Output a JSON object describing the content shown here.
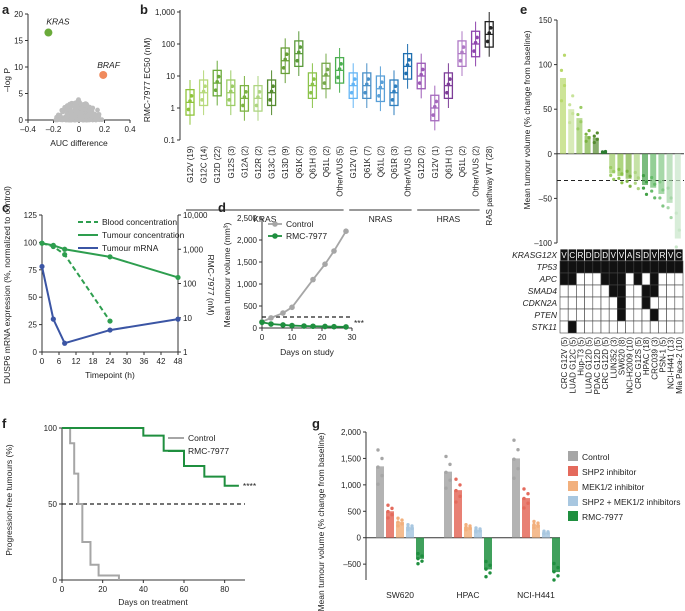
{
  "panels": {
    "a": {
      "letter": "a",
      "ylabel": "–log P",
      "xlabel": "AUC difference",
      "xticks": [
        "–0.4",
        "–0.2",
        "0",
        "0.2",
        "0.4"
      ],
      "yticks": [
        "0",
        "5",
        "10",
        "15",
        "20"
      ],
      "labels": [
        "KRAS",
        "BRAF"
      ],
      "colors": {
        "kras": "#6aaa3a",
        "braf": "#f08a5d",
        "bg": "#bdbdbd"
      },
      "chart_data": {
        "type": "scatter",
        "xlim": [
          -0.4,
          0.4
        ],
        "ylim": [
          0,
          20
        ],
        "points": [
          {
            "label": "KRAS",
            "x": -0.24,
            "y": 16.5
          },
          {
            "label": "BRAF",
            "x": 0.19,
            "y": 8.5
          }
        ]
      }
    },
    "b": {
      "letter": "b",
      "ylabel": "RMC-7977 EC50 (nM)",
      "yticks": [
        "0.1",
        "1",
        "10",
        "100",
        "1,000"
      ],
      "categories": [
        "G12V (19)",
        "G12C (14)",
        "G12D (22)",
        "G12S (3)",
        "G12A (2)",
        "G12R (2)",
        "G13C (1)",
        "G13D (9)",
        "Q61K (2)",
        "Q61H (3)",
        "Q61L (2)",
        "Other/VUS (5)",
        "G12V (1)",
        "Q61K (7)",
        "Q61L (2)",
        "Q61R (3)",
        "Other/VUS (1)",
        "G12D (2)",
        "G12V (1)",
        "Q61H (1)",
        "Q61L (2)",
        "Other/VUS (2)",
        "RAS pathway WT (28)"
      ],
      "groups": [
        {
          "name": "KRAS"
        },
        {
          "name": "NRAS"
        },
        {
          "name": "HRAS"
        }
      ],
      "chart_data": {
        "type": "box",
        "yscale": "log",
        "ylim": [
          0.1,
          1000
        ],
        "medians": [
          1.5,
          3,
          6,
          3,
          2,
          2,
          3,
          30,
          50,
          5,
          10,
          15,
          5,
          5,
          4,
          3,
          20,
          10,
          1,
          5,
          50,
          100,
          200
        ]
      }
    },
    "c": {
      "letter": "c",
      "ylabel": "DUSP6 mRNA expression (%, normalized to control)",
      "y2label": "RMC-7977 (nM)",
      "xlabel": "Timepoint (h)",
      "xticks": [
        "0",
        "6",
        "12",
        "18",
        "24",
        "30",
        "36",
        "42",
        "48"
      ],
      "yticks": [
        "0",
        "25",
        "50",
        "75",
        "100",
        "125"
      ],
      "y2ticks": [
        "1",
        "10",
        "100",
        "1,000",
        "10,000"
      ],
      "legend": [
        "Blood concentration",
        "Tumour concentration",
        "Tumour mRNA"
      ],
      "colors": {
        "blood": "#2e9e4f",
        "tumour": "#2e9e4f",
        "mrna": "#3b55a4"
      },
      "chart_data": {
        "type": "line",
        "series": [
          {
            "name": "Blood concentration",
            "x": [
              0,
              4,
              8,
              24
            ],
            "y": [
              1500,
              1200,
              700,
              8
            ]
          },
          {
            "name": "Tumour concentration",
            "x": [
              0,
              4,
              8,
              24,
              48
            ],
            "y": [
              1500,
              1300,
              1000,
              600,
              150
            ]
          },
          {
            "name": "Tumour mRNA",
            "x": [
              0,
              4,
              8,
              24,
              48
            ],
            "y": [
              78,
              30,
              8,
              20,
              30
            ]
          }
        ]
      }
    },
    "d": {
      "letter": "d",
      "ylabel": "Mean tumour volume (mm³)",
      "xlabel": "Days on study",
      "xticks": [
        "0",
        "10",
        "20",
        "30"
      ],
      "yticks": [
        "0",
        "500",
        "1,000",
        "1,500",
        "2,000",
        "2,500"
      ],
      "legend": [
        "Control",
        "RMC-7977"
      ],
      "sig": "***",
      "chart_data": {
        "type": "line",
        "series": [
          {
            "name": "Control",
            "x": [
              0,
              3,
              7,
              10,
              17,
              21,
              24,
              28
            ],
            "y": [
              140,
              230,
              340,
              470,
              1100,
              1450,
              1750,
              2200
            ]
          },
          {
            "name": "RMC-7977",
            "x": [
              0,
              3,
              7,
              10,
              14,
              17,
              21,
              24,
              28
            ],
            "y": [
              130,
              90,
              70,
              55,
              45,
              40,
              35,
              30,
              25
            ]
          }
        ]
      }
    },
    "e": {
      "letter": "e",
      "ylabel": "Mean tumour volume (% change from baseline)",
      "yticks": [
        "150",
        "100",
        "50",
        "0",
        "–50",
        "–100"
      ],
      "gene_header": "KRASG12X",
      "kras_letters": [
        "V",
        "C",
        "R",
        "D",
        "D",
        "D",
        "V",
        "V",
        "A",
        "S",
        "D",
        "V",
        "R",
        "V",
        "C"
      ],
      "genes": [
        "TP53",
        "APC",
        "SMAD4",
        "CDKN2A",
        "PTEN",
        "STK11"
      ],
      "models": [
        "CRC G12V (5)",
        "LUAD G12C (5)",
        "Hup-T3 (5)",
        "LUAD G12D (5)",
        "PDAC G12D (5)",
        "CRC G12D (5)",
        "LUN352 (3)",
        "SW620 (8)",
        "NCI-H2009 (10)",
        "CRC G12S (5)",
        "HPAC (18)",
        "CRC039 (3)",
        "PSN-1 (5)",
        "NCI-H441 (13)",
        "Mia Paca-2 (10)"
      ],
      "chart_data": {
        "type": "bar",
        "categories": [
          "CRC G12V",
          "LUAD G12C",
          "Hup-T3",
          "LUAD G12D",
          "PDAC G12D",
          "CRC G12D",
          "LUN352",
          "SW620",
          "NCI-H2009",
          "CRC G12S",
          "HPAC",
          "CRC039",
          "PSN-1",
          "NCI-H441",
          "Mia Paca-2"
        ],
        "values": [
          85,
          50,
          40,
          20,
          18,
          2,
          -22,
          -25,
          -28,
          -30,
          -35,
          -38,
          -45,
          -55,
          -95
        ],
        "ylim": [
          -100,
          150
        ]
      }
    },
    "f": {
      "letter": "f",
      "ylabel": "Progression-free tumours (%)",
      "xlabel": "Days on treatment",
      "xticks": [
        "0",
        "20",
        "40",
        "60",
        "80"
      ],
      "yticks": [
        "0",
        "50",
        "100"
      ],
      "legend": [
        "Control",
        "RMC-7977"
      ],
      "sig": "****",
      "chart_data": {
        "type": "line",
        "xlim": [
          0,
          90
        ],
        "ylim": [
          0,
          100
        ],
        "series": [
          {
            "name": "Control",
            "x": [
              0,
              4,
              6,
              8,
              10,
              14,
              18,
              28
            ],
            "y": [
              100,
              90,
              70,
              50,
              25,
              10,
              3,
              0
            ]
          },
          {
            "name": "RMC-7977",
            "x": [
              0,
              10,
              20,
              30,
              40,
              50,
              60,
              70,
              80,
              87
            ],
            "y": [
              100,
              100,
              100,
              100,
              95,
              85,
              75,
              68,
              62,
              62
            ]
          }
        ]
      }
    },
    "g": {
      "letter": "g",
      "ylabel": "Mean tumour volume (% change from baseline)",
      "yticks": [
        "2,000",
        "1,500",
        "1,000",
        "500",
        "0",
        "–500"
      ],
      "groups": [
        "SW620",
        "HPAC",
        "NCI-H441"
      ],
      "legend": [
        "Control",
        "SHP2 inhibitor",
        "MEK1/2 inhibitor",
        "SHP2 + MEK1/2 inhibitors",
        "RMC-7977"
      ],
      "colors": [
        "#a6a6a6",
        "#e46a5c",
        "#f2b07d",
        "#a8c7e0",
        "#1f8f3f"
      ],
      "chart_data": {
        "type": "bar",
        "categories": [
          "SW620",
          "HPAC",
          "NCI-H441"
        ],
        "series": [
          {
            "name": "Control",
            "values": [
              1350,
              1250,
              1500
            ]
          },
          {
            "name": "SHP2 inhibitor",
            "values": [
              500,
              900,
              750
            ]
          },
          {
            "name": "MEK1/2 inhibitor",
            "values": [
              300,
              200,
              250
            ]
          },
          {
            "name": "SHP2 + MEK1/2 inhibitors",
            "values": [
              200,
              150,
              100
            ]
          },
          {
            "name": "RMC-7977",
            "values": [
              -400,
              -600,
              -650
            ]
          }
        ],
        "ylim": [
          -800,
          2000
        ]
      }
    }
  }
}
